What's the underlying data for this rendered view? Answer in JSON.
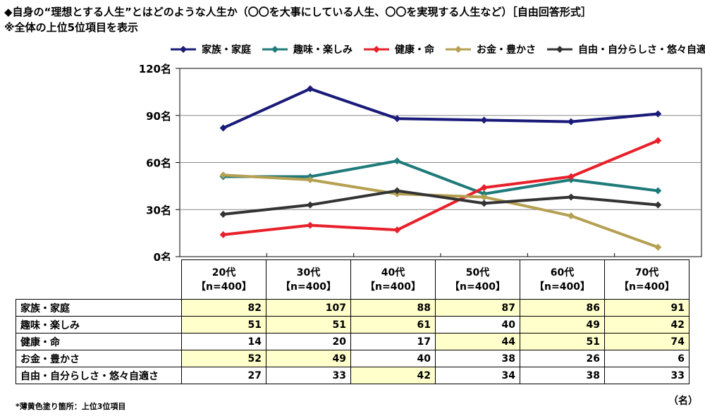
{
  "title_line1": "◆自身の“理想とする人生”とはどのような人生か（〇〇を大事にしている人生、〇〇を実現する人生など）［自由回答形式］",
  "title_line2": "※全体の上位5位項目を表示",
  "footnote": "*薄黄色塗り箇所：上位3位項目",
  "unit_label": "（名）",
  "chart_data": {
    "type": "line",
    "categories": [
      "20代",
      "30代",
      "40代",
      "50代",
      "60代",
      "70代"
    ],
    "sample_labels": [
      "【n=400】",
      "【n=400】",
      "【n=400】",
      "【n=400】",
      "【n=400】",
      "【n=400】"
    ],
    "y_ticks": [
      "0名",
      "30名",
      "60名",
      "90名",
      "120名"
    ],
    "ylim": [
      0,
      120
    ],
    "series": [
      {
        "name": "家族・家庭",
        "color": "#1a1a7a",
        "values": [
          82,
          107,
          88,
          87,
          86,
          91
        ],
        "highlight": [
          true,
          true,
          true,
          true,
          true,
          true
        ]
      },
      {
        "name": "趣味・楽しみ",
        "color": "#1f7a7a",
        "values": [
          51,
          51,
          61,
          40,
          49,
          42
        ],
        "highlight": [
          true,
          true,
          true,
          false,
          true,
          true
        ]
      },
      {
        "name": "健康・命",
        "color": "#e8202a",
        "values": [
          14,
          20,
          17,
          44,
          51,
          74
        ],
        "highlight": [
          false,
          false,
          false,
          true,
          true,
          true
        ]
      },
      {
        "name": "お金・豊かさ",
        "color": "#b5a052",
        "values": [
          52,
          49,
          40,
          38,
          26,
          6
        ],
        "highlight": [
          true,
          true,
          false,
          false,
          false,
          false
        ]
      },
      {
        "name": "自由・自分らしさ・悠々自適さ",
        "color": "#333333",
        "values": [
          27,
          33,
          42,
          34,
          38,
          33
        ],
        "highlight": [
          false,
          false,
          true,
          false,
          false,
          false
        ]
      }
    ]
  }
}
